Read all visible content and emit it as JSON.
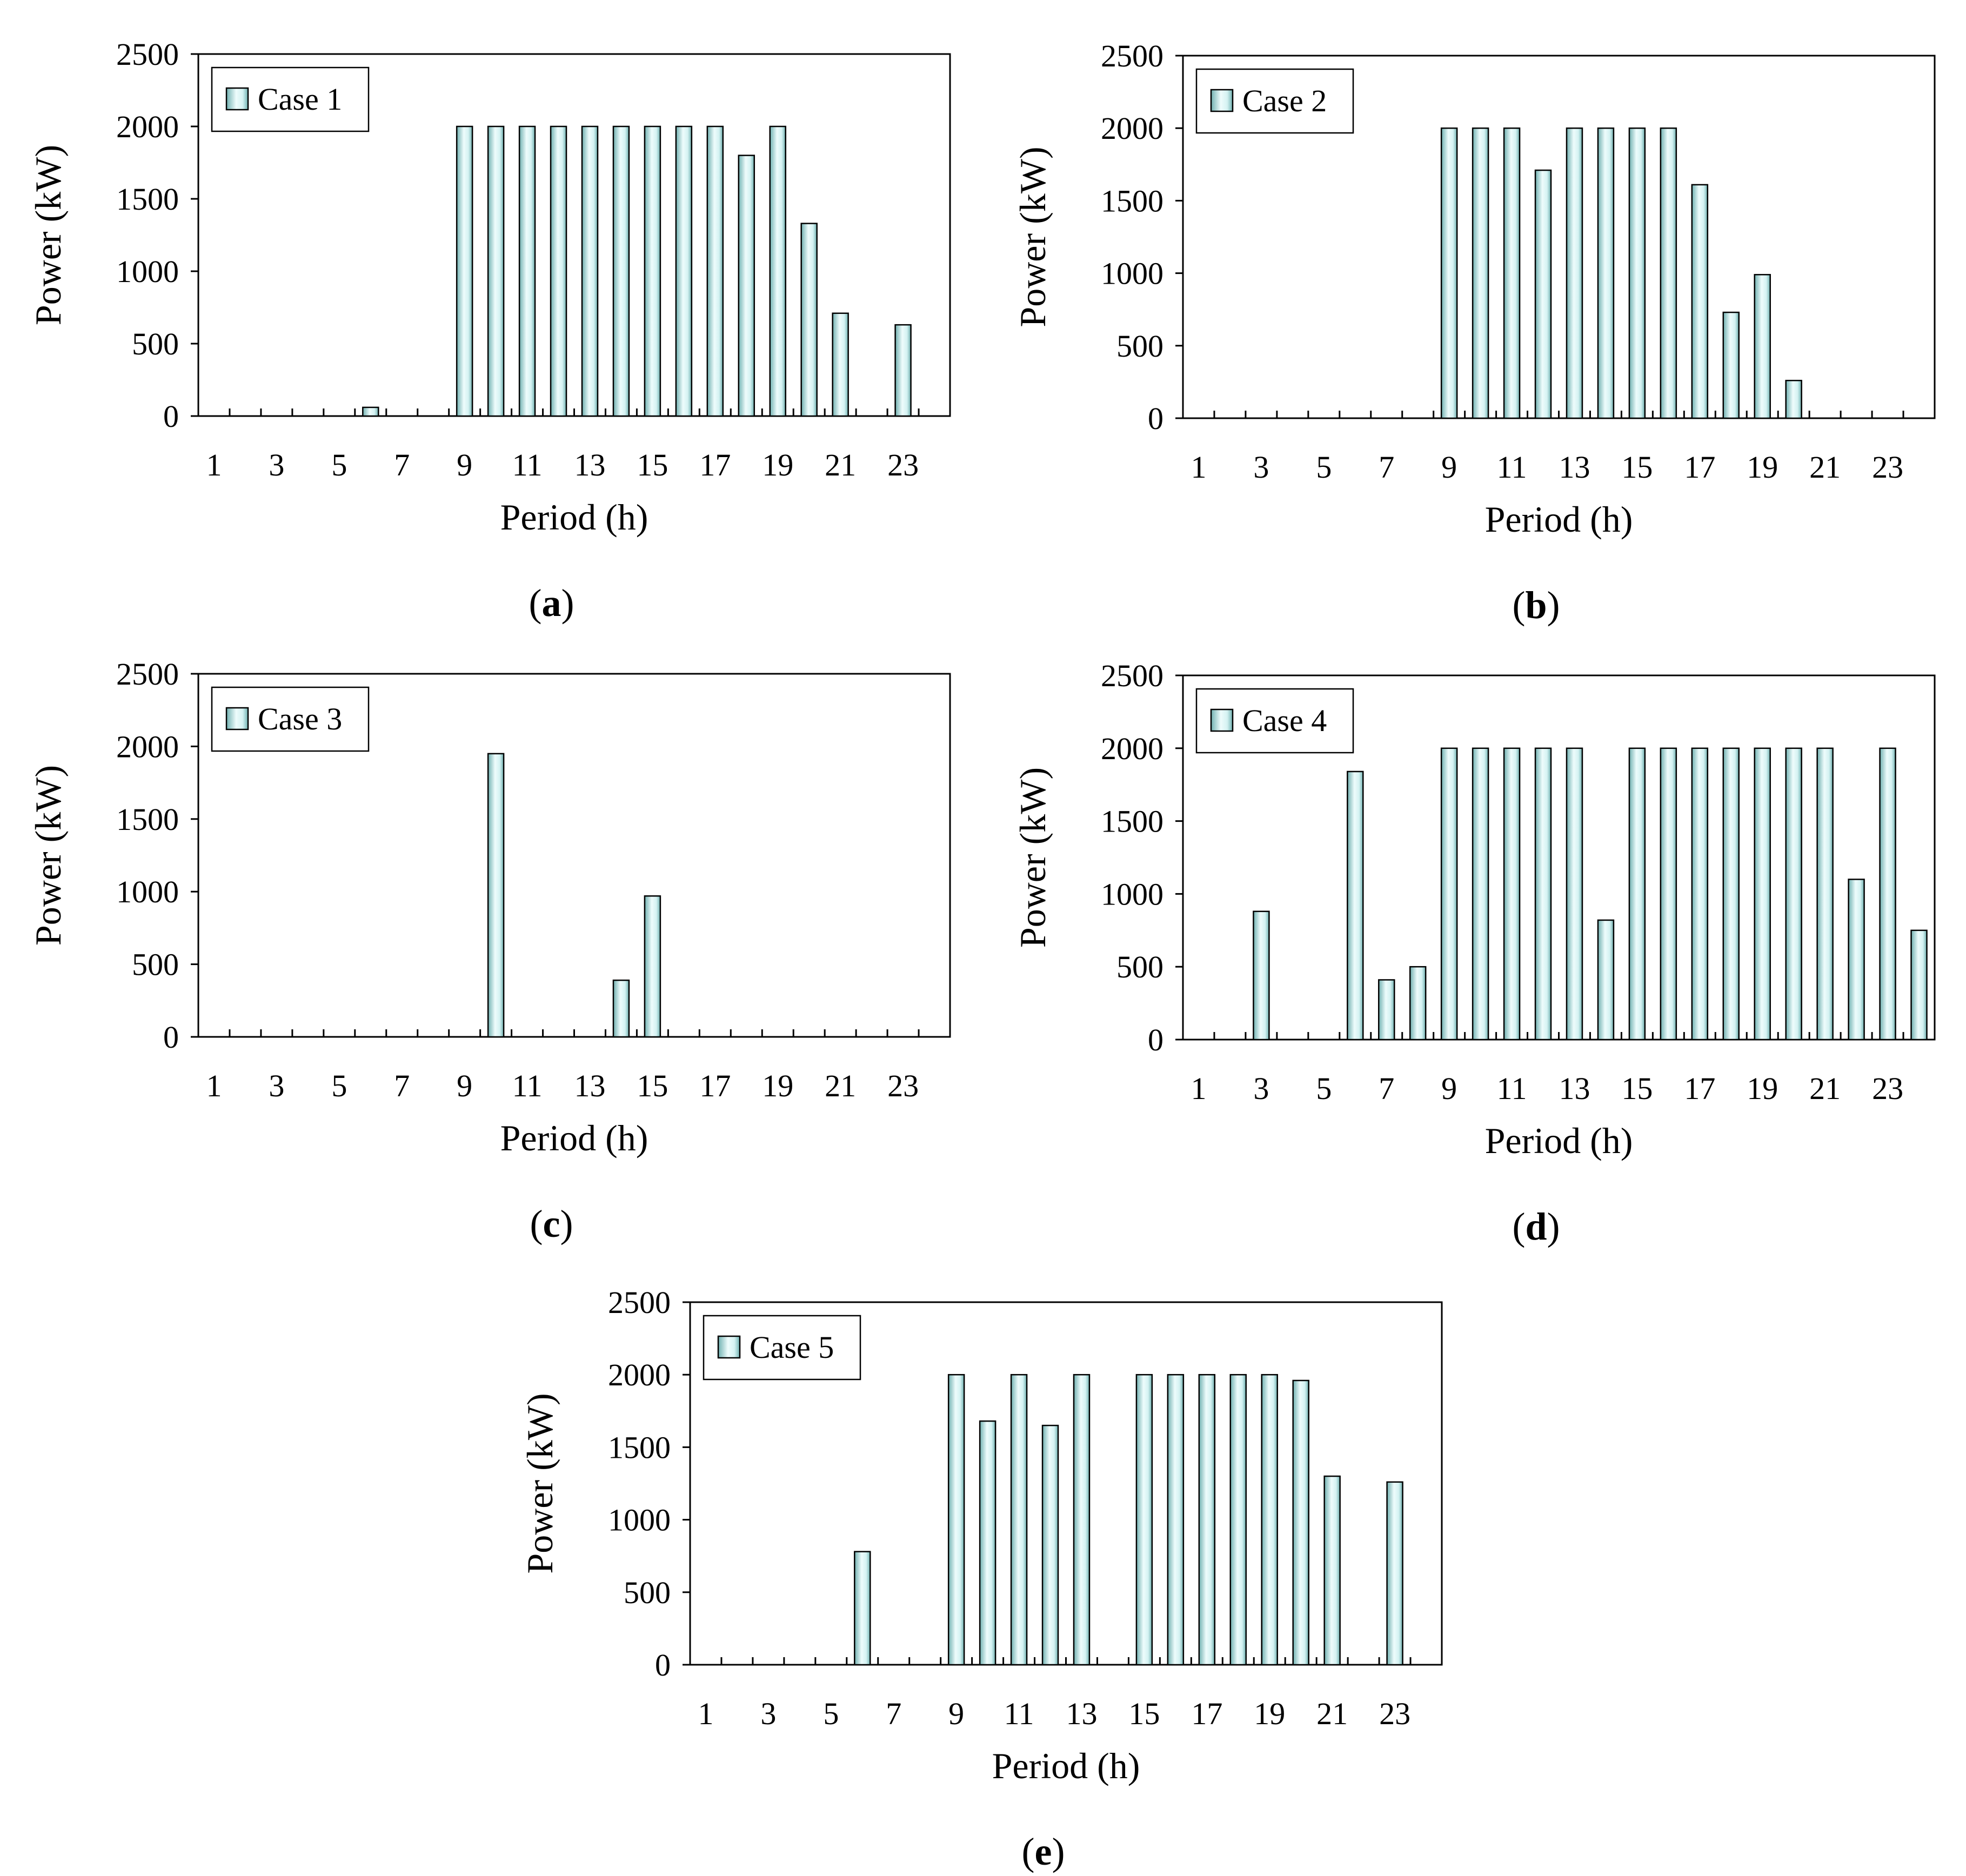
{
  "figure": {
    "panel_label_prefix": "(",
    "panel_label_suffix": ")"
  },
  "colors": {
    "bar_dark": "#6fb0b0",
    "bar_mid": "#d4f2f2",
    "bar_light": "#eefcfc",
    "bar_edge": "#000000",
    "frame": "#000000",
    "background": "#ffffff"
  },
  "chart_data": [
    {
      "type": "bar",
      "panel": "a",
      "xlabel": "Period (h)",
      "ylabel": "Power (kW)",
      "ylim": [
        0,
        2500
      ],
      "yticks": [
        0,
        500,
        1000,
        1500,
        2000,
        2500
      ],
      "xtick_labels": [
        "1",
        "3",
        "5",
        "7",
        "9",
        "11",
        "13",
        "15",
        "17",
        "19",
        "21",
        "23"
      ],
      "legend_position": "top-left",
      "grid": false,
      "categories": [
        1,
        2,
        3,
        4,
        5,
        6,
        7,
        8,
        9,
        10,
        11,
        12,
        13,
        14,
        15,
        16,
        17,
        18,
        19,
        20,
        21,
        22,
        23,
        24
      ],
      "series": [
        {
          "name": "Case 1",
          "values": [
            0,
            0,
            0,
            0,
            0,
            60,
            0,
            0,
            2000,
            2000,
            2000,
            2000,
            2000,
            2000,
            2000,
            2000,
            2000,
            1800,
            2000,
            1330,
            710,
            0,
            630,
            0
          ]
        }
      ]
    },
    {
      "type": "bar",
      "panel": "b",
      "xlabel": "Period (h)",
      "ylabel": "Power (kW)",
      "ylim": [
        0,
        2500
      ],
      "yticks": [
        0,
        500,
        1000,
        1500,
        2000,
        2500
      ],
      "xtick_labels": [
        "1",
        "3",
        "5",
        "7",
        "9",
        "11",
        "13",
        "15",
        "17",
        "19",
        "21",
        "23"
      ],
      "legend_position": "top-left",
      "grid": false,
      "categories": [
        1,
        2,
        3,
        4,
        5,
        6,
        7,
        8,
        9,
        10,
        11,
        12,
        13,
        14,
        15,
        16,
        17,
        18,
        19,
        20,
        21,
        22,
        23,
        24
      ],
      "series": [
        {
          "name": "Case 2",
          "values": [
            0,
            0,
            0,
            0,
            0,
            0,
            0,
            0,
            2000,
            2000,
            2000,
            1710,
            2000,
            2000,
            2000,
            2000,
            1610,
            730,
            990,
            260,
            0,
            0,
            0,
            0
          ]
        }
      ]
    },
    {
      "type": "bar",
      "panel": "c",
      "xlabel": "Period (h)",
      "ylabel": "Power (kW)",
      "ylim": [
        0,
        2500
      ],
      "yticks": [
        0,
        500,
        1000,
        1500,
        2000,
        2500
      ],
      "xtick_labels": [
        "1",
        "3",
        "5",
        "7",
        "9",
        "11",
        "13",
        "15",
        "17",
        "19",
        "21",
        "23"
      ],
      "legend_position": "top-left",
      "grid": false,
      "categories": [
        1,
        2,
        3,
        4,
        5,
        6,
        7,
        8,
        9,
        10,
        11,
        12,
        13,
        14,
        15,
        16,
        17,
        18,
        19,
        20,
        21,
        22,
        23,
        24
      ],
      "series": [
        {
          "name": "Case 3",
          "values": [
            0,
            0,
            0,
            0,
            0,
            0,
            0,
            0,
            0,
            1950,
            0,
            0,
            0,
            390,
            970,
            0,
            0,
            0,
            0,
            0,
            0,
            0,
            0,
            0
          ]
        }
      ]
    },
    {
      "type": "bar",
      "panel": "d",
      "xlabel": "Period (h)",
      "ylabel": "Power (kW)",
      "ylim": [
        0,
        2500
      ],
      "yticks": [
        0,
        500,
        1000,
        1500,
        2000,
        2500
      ],
      "xtick_labels": [
        "1",
        "3",
        "5",
        "7",
        "9",
        "11",
        "13",
        "15",
        "17",
        "19",
        "21",
        "23"
      ],
      "legend_position": "top-left",
      "grid": false,
      "categories": [
        1,
        2,
        3,
        4,
        5,
        6,
        7,
        8,
        9,
        10,
        11,
        12,
        13,
        14,
        15,
        16,
        17,
        18,
        19,
        20,
        21,
        22,
        23,
        24
      ],
      "series": [
        {
          "name": "Case 4",
          "values": [
            0,
            0,
            880,
            0,
            0,
            1840,
            410,
            500,
            2000,
            2000,
            2000,
            2000,
            2000,
            820,
            2000,
            2000,
            2000,
            2000,
            2000,
            2000,
            2000,
            1100,
            2000,
            750
          ]
        }
      ]
    },
    {
      "type": "bar",
      "panel": "e",
      "xlabel": "Period (h)",
      "ylabel": "Power (kW)",
      "ylim": [
        0,
        2500
      ],
      "yticks": [
        0,
        500,
        1000,
        1500,
        2000,
        2500
      ],
      "xtick_labels": [
        "1",
        "3",
        "5",
        "7",
        "9",
        "11",
        "13",
        "15",
        "17",
        "19",
        "21",
        "23"
      ],
      "legend_position": "top-left",
      "grid": false,
      "categories": [
        1,
        2,
        3,
        4,
        5,
        6,
        7,
        8,
        9,
        10,
        11,
        12,
        13,
        14,
        15,
        16,
        17,
        18,
        19,
        20,
        21,
        22,
        23,
        24
      ],
      "series": [
        {
          "name": "Case 5",
          "values": [
            0,
            0,
            0,
            0,
            0,
            780,
            0,
            0,
            2000,
            1680,
            2000,
            1650,
            2000,
            0,
            2000,
            2000,
            2000,
            2000,
            2000,
            1960,
            1300,
            0,
            1260,
            0
          ]
        }
      ]
    }
  ]
}
